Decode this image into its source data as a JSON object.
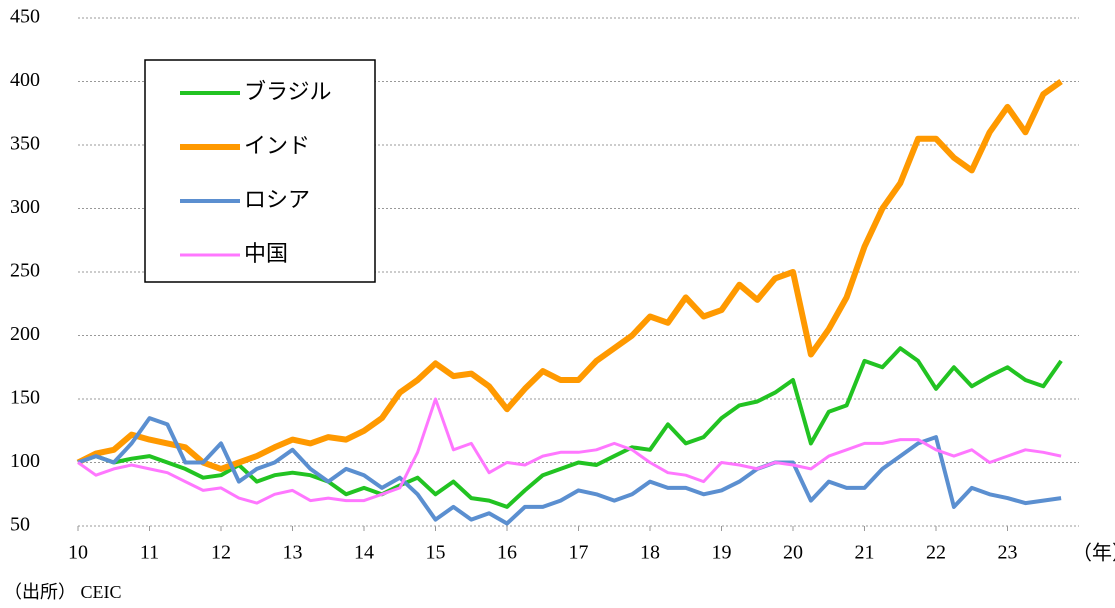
{
  "chart_data": {
    "type": "line",
    "x_label": "（年）",
    "source": "（出所） CEIC",
    "x": [
      10,
      10.25,
      10.5,
      10.75,
      11,
      11.25,
      11.5,
      11.75,
      12,
      12.25,
      12.5,
      12.75,
      13,
      13.25,
      13.5,
      13.75,
      14,
      14.25,
      14.5,
      14.75,
      15,
      15.25,
      15.5,
      15.75,
      16,
      16.25,
      16.5,
      16.75,
      17,
      17.25,
      17.5,
      17.75,
      18,
      18.25,
      18.5,
      18.75,
      19,
      19.25,
      19.5,
      19.75,
      20,
      20.25,
      20.5,
      20.75,
      21,
      21.25,
      21.5,
      21.75,
      22,
      22.25,
      22.5,
      22.75,
      23,
      23.25,
      23.5,
      23.75
    ],
    "series": [
      {
        "name": "ブラジル",
        "color": "#22c322",
        "width": 4,
        "values": [
          100,
          105,
          100,
          103,
          105,
          100,
          95,
          88,
          90,
          98,
          85,
          90,
          92,
          90,
          85,
          75,
          80,
          75,
          82,
          88,
          75,
          85,
          72,
          70,
          65,
          78,
          90,
          95,
          100,
          98,
          105,
          112,
          110,
          130,
          115,
          120,
          135,
          145,
          148,
          155,
          165,
          115,
          140,
          145,
          180,
          175,
          190,
          180,
          158,
          175,
          160,
          168,
          175,
          165,
          160,
          180
        ]
      },
      {
        "name": "インド",
        "color": "#ff9900",
        "width": 6,
        "values": [
          100,
          107,
          110,
          122,
          118,
          115,
          112,
          100,
          95,
          100,
          105,
          112,
          118,
          115,
          120,
          118,
          125,
          135,
          155,
          165,
          178,
          168,
          170,
          160,
          142,
          158,
          172,
          165,
          165,
          180,
          190,
          200,
          215,
          210,
          230,
          215,
          220,
          240,
          228,
          245,
          250,
          185,
          205,
          230,
          270,
          300,
          320,
          355,
          355,
          340,
          330,
          360,
          380,
          360,
          390,
          400
        ]
      },
      {
        "name": "ロシア",
        "color": "#5b8fd0",
        "width": 4,
        "values": [
          100,
          105,
          100,
          115,
          135,
          130,
          100,
          100,
          115,
          85,
          95,
          100,
          110,
          95,
          85,
          95,
          90,
          80,
          88,
          75,
          55,
          65,
          55,
          60,
          52,
          65,
          65,
          70,
          78,
          75,
          70,
          75,
          85,
          80,
          80,
          75,
          78,
          85,
          95,
          100,
          100,
          70,
          85,
          80,
          80,
          95,
          105,
          115,
          120,
          65,
          80,
          75,
          72,
          68,
          70,
          72
        ]
      },
      {
        "name": "中国",
        "color": "#ff77ff",
        "width": 3,
        "values": [
          100,
          90,
          95,
          98,
          95,
          92,
          85,
          78,
          80,
          72,
          68,
          75,
          78,
          70,
          72,
          70,
          70,
          75,
          80,
          108,
          150,
          110,
          115,
          92,
          100,
          98,
          105,
          108,
          108,
          110,
          115,
          110,
          100,
          92,
          90,
          85,
          100,
          98,
          95,
          100,
          98,
          95,
          105,
          110,
          115,
          115,
          118,
          118,
          110,
          105,
          110,
          100,
          105,
          110,
          108,
          105
        ]
      }
    ],
    "xlim": [
      10,
      24
    ],
    "xticks": [
      10,
      11,
      12,
      13,
      14,
      15,
      16,
      17,
      18,
      19,
      20,
      21,
      22,
      23
    ],
    "ylim": [
      50,
      450
    ],
    "yticks": [
      50,
      100,
      150,
      200,
      250,
      300,
      350,
      400,
      450
    ],
    "grid": true
  }
}
